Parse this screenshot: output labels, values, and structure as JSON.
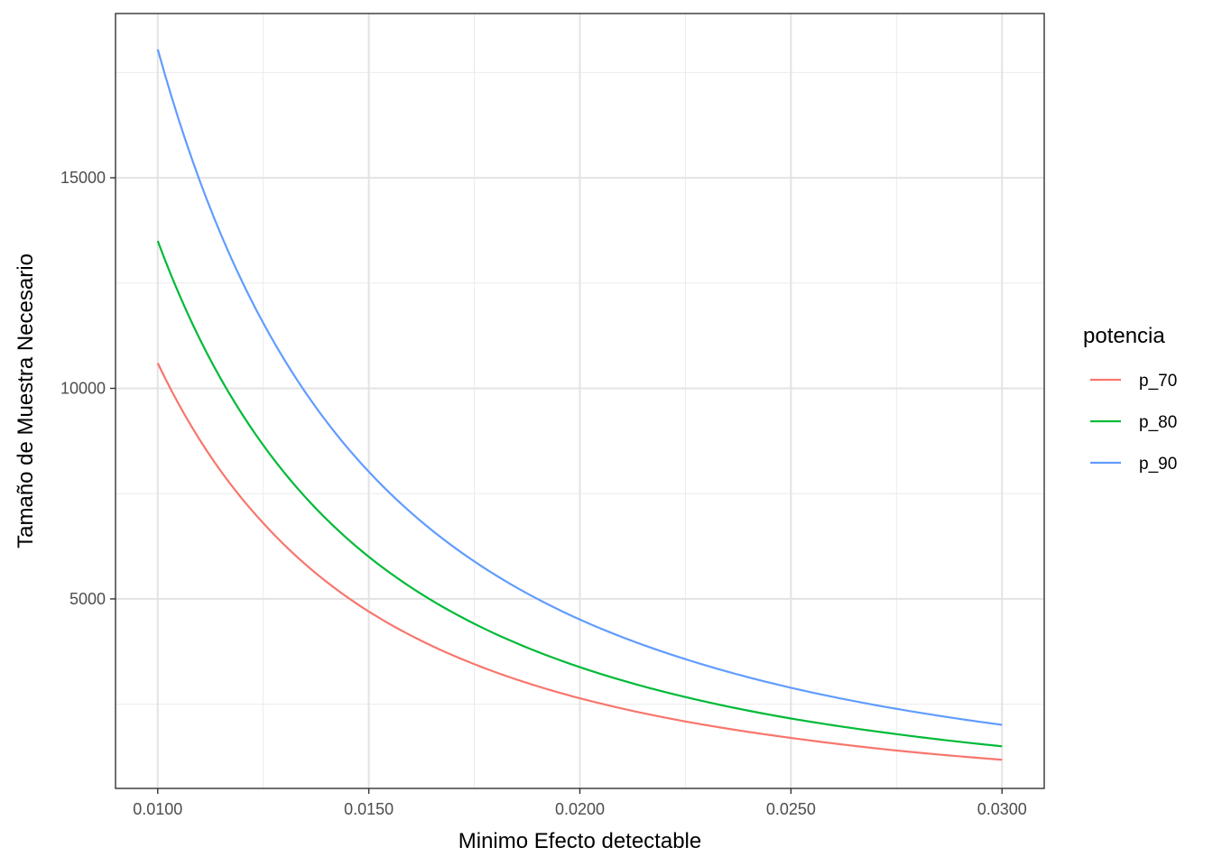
{
  "chart_data": {
    "type": "line",
    "title": "",
    "xlabel": "Minimo Efecto detectable",
    "ylabel": "Tamaño de Muestra Necesario",
    "xlim": [
      0.009,
      0.031
    ],
    "ylim": [
      500,
      18900
    ],
    "x_ticks": [
      0.01,
      0.015,
      0.02,
      0.025,
      0.03
    ],
    "x_tick_labels": [
      "0.0100",
      "0.0150",
      "0.0200",
      "0.0250",
      "0.0300"
    ],
    "y_ticks": [
      5000,
      10000,
      15000
    ],
    "y_tick_labels": [
      "5000",
      "10000",
      "15000"
    ],
    "grid": true,
    "legend": {
      "title": "potencia",
      "placement": "right"
    },
    "x": [
      0.01,
      0.0125,
      0.015,
      0.0175,
      0.02,
      0.0225,
      0.025,
      0.0275,
      0.03
    ],
    "series": [
      {
        "name": "p_70",
        "color": "#F8766D",
        "values": [
          10600,
          6800,
          4700,
          3450,
          2640,
          2090,
          1700,
          1400,
          1180
        ]
      },
      {
        "name": "p_80",
        "color": "#00BA38",
        "values": [
          13500,
          8650,
          6000,
          4410,
          3380,
          2670,
          2160,
          1790,
          1500
        ]
      },
      {
        "name": "p_90",
        "color": "#619CFF",
        "values": [
          18050,
          11550,
          8020,
          5890,
          4510,
          3570,
          2890,
          2390,
          2010
        ]
      }
    ]
  }
}
